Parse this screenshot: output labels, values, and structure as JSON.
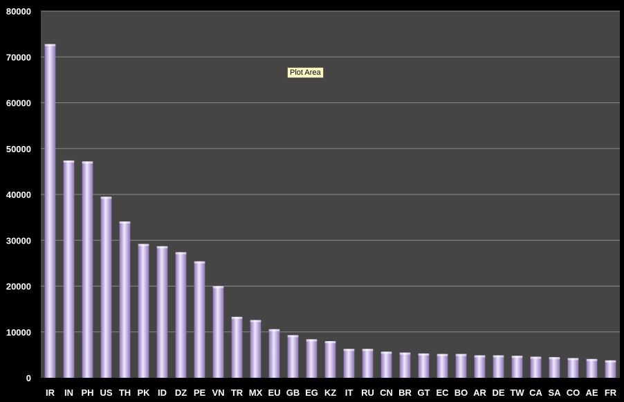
{
  "tooltip": "Plot Area",
  "colors": {
    "plot_bg": "#454545",
    "bar_light": "#efe6ff",
    "bar_dark": "#8f75b4",
    "grid": "#8a8a8a"
  },
  "chart_data": {
    "type": "bar",
    "title": "",
    "xlabel": "",
    "ylabel": "",
    "ylim": [
      0,
      80000
    ],
    "yticks": [
      0,
      10000,
      20000,
      30000,
      40000,
      50000,
      60000,
      70000,
      80000
    ],
    "grid": true,
    "categories": [
      "IR",
      "IN",
      "PH",
      "US",
      "TH",
      "PK",
      "ID",
      "DZ",
      "PE",
      "VN",
      "TR",
      "MX",
      "EU",
      "GB",
      "EG",
      "KZ",
      "IT",
      "RU",
      "CN",
      "BR",
      "GT",
      "EC",
      "BO",
      "AR",
      "DE",
      "TW",
      "CA",
      "SA",
      "CO",
      "AE",
      "FR"
    ],
    "values": [
      72800,
      47400,
      47200,
      39500,
      34100,
      29200,
      28700,
      27400,
      25400,
      20000,
      13300,
      12600,
      10600,
      9300,
      8400,
      8000,
      6300,
      6300,
      5700,
      5500,
      5300,
      5200,
      5200,
      4900,
      4900,
      4800,
      4600,
      4500,
      4300,
      4100,
      3800
    ]
  }
}
